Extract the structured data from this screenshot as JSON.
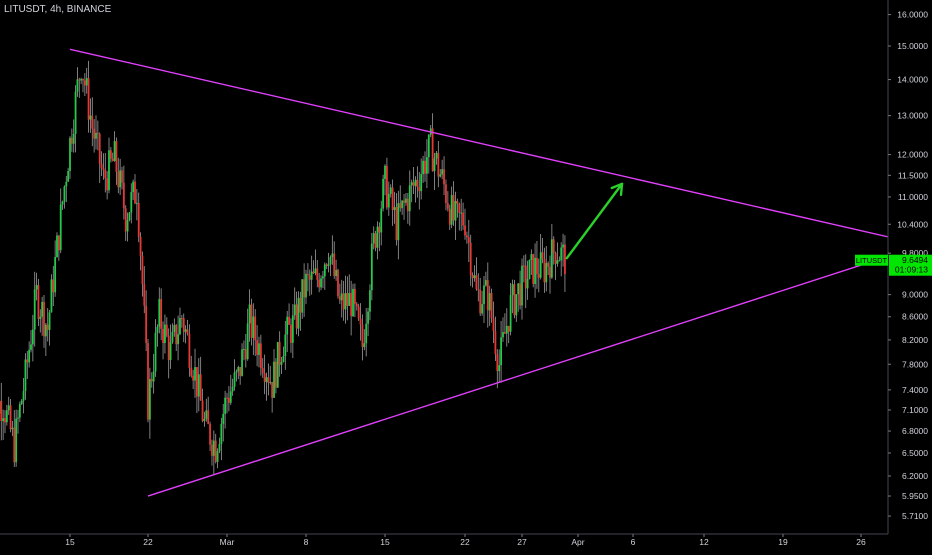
{
  "header": {
    "symbol_line": "LITUSDT, 4h, BINANCE"
  },
  "chart_data": {
    "type": "candlestick",
    "title": "LITUSDT, 4h, BINANCE",
    "symbol": "LITUSDT",
    "interval": "4h",
    "exchange": "BINANCE",
    "y_scale": "log",
    "ylim": [
      5.6,
      16.3
    ],
    "y_ticks": [
      "16.0000",
      "15.0000",
      "14.0000",
      "13.0000",
      "12.0000",
      "11.5000",
      "11.0000",
      "10.4000",
      "9.8000",
      "9.0000",
      "8.6000",
      "8.2000",
      "7.8000",
      "7.4000",
      "7.1000",
      "6.8000",
      "6.5000",
      "6.2000",
      "5.9500",
      "5.7100"
    ],
    "x_ticks": [
      {
        "label": "15",
        "date": "2021-02-15"
      },
      {
        "label": "22",
        "date": "2021-02-22"
      },
      {
        "label": "Mar",
        "date": "2021-03-01"
      },
      {
        "label": "8",
        "date": "2021-03-08"
      },
      {
        "label": "15",
        "date": "2021-03-15"
      },
      {
        "label": "22",
        "date": "2021-03-22"
      },
      {
        "label": "27",
        "date": "2021-03-27"
      },
      {
        "label": "Apr",
        "date": "2021-04-01"
      },
      {
        "label": "6",
        "date": "2021-04-06"
      },
      {
        "label": "12",
        "date": "2021-04-12"
      },
      {
        "label": "19",
        "date": "2021-04-19"
      },
      {
        "label": "26",
        "date": "2021-04-26"
      }
    ],
    "last_price": {
      "symbol": "LITUSDT",
      "value": "9.6494",
      "countdown": "01:09:13"
    },
    "price_path": [
      [
        "2021-02-09",
        7.2
      ],
      [
        "2021-02-10",
        6.6
      ],
      [
        "2021-02-11",
        7.6
      ],
      [
        "2021-02-12",
        9.0
      ],
      [
        "2021-02-13",
        8.4
      ],
      [
        "2021-02-14",
        10.2
      ],
      [
        "2021-02-15",
        12.3
      ],
      [
        "2021-02-16",
        14.5
      ],
      [
        "2021-02-17",
        12.7
      ],
      [
        "2021-02-18",
        11.4
      ],
      [
        "2021-02-19",
        11.9
      ],
      [
        "2021-02-20",
        10.6
      ],
      [
        "2021-02-21",
        11.2
      ],
      [
        "2021-02-22",
        7.2
      ],
      [
        "2021-02-23",
        8.6
      ],
      [
        "2021-02-24",
        8.0
      ],
      [
        "2021-02-25",
        8.6
      ],
      [
        "2021-02-26",
        7.8
      ],
      [
        "2021-02-27",
        6.9
      ],
      [
        "2021-02-28",
        6.6
      ],
      [
        "2021-03-01",
        7.3
      ],
      [
        "2021-03-02",
        7.6
      ],
      [
        "2021-03-03",
        8.5
      ],
      [
        "2021-03-04",
        8.0
      ],
      [
        "2021-03-05",
        7.5
      ],
      [
        "2021-03-06",
        8.2
      ],
      [
        "2021-03-07",
        8.5
      ],
      [
        "2021-03-08",
        9.2
      ],
      [
        "2021-03-09",
        9.3
      ],
      [
        "2021-03-10",
        9.9
      ],
      [
        "2021-03-11",
        8.8
      ],
      [
        "2021-03-12",
        8.9
      ],
      [
        "2021-03-13",
        8.1
      ],
      [
        "2021-03-14",
        10.0
      ],
      [
        "2021-03-15",
        11.3
      ],
      [
        "2021-03-16",
        10.4
      ],
      [
        "2021-03-17",
        11.0
      ],
      [
        "2021-03-18",
        11.5
      ],
      [
        "2021-03-19",
        12.2
      ],
      [
        "2021-03-20",
        11.4
      ],
      [
        "2021-03-21",
        10.5
      ],
      [
        "2021-03-22",
        10.5
      ],
      [
        "2021-03-23",
        9.0
      ],
      [
        "2021-03-24",
        9.0
      ],
      [
        "2021-03-25",
        7.8
      ],
      [
        "2021-03-26",
        8.8
      ],
      [
        "2021-03-27",
        9.2
      ],
      [
        "2021-03-28",
        9.5
      ],
      [
        "2021-03-29",
        9.5
      ],
      [
        "2021-03-30",
        9.9
      ],
      [
        "2021-03-31",
        9.65
      ]
    ],
    "trendlines": [
      {
        "name": "resistance",
        "color": "#e040fb",
        "from": [
          "2021-02-15",
          14.9
        ],
        "to": [
          "2021-04-30",
          10.05
        ]
      },
      {
        "name": "support",
        "color": "#e040fb",
        "from": [
          "2021-02-22",
          5.95
        ],
        "to": [
          "2021-04-30",
          9.85
        ]
      }
    ],
    "annotations": [
      {
        "type": "arrow",
        "color": "#2bd12b",
        "from": [
          "2021-03-31",
          9.7
        ],
        "to": [
          "2021-04-05",
          11.3
        ]
      }
    ],
    "colors": {
      "up": "#26c94a",
      "down": "#e53935",
      "background": "#000000",
      "axis_text": "#d1d4dc",
      "last_price_label": "#00e600"
    }
  }
}
